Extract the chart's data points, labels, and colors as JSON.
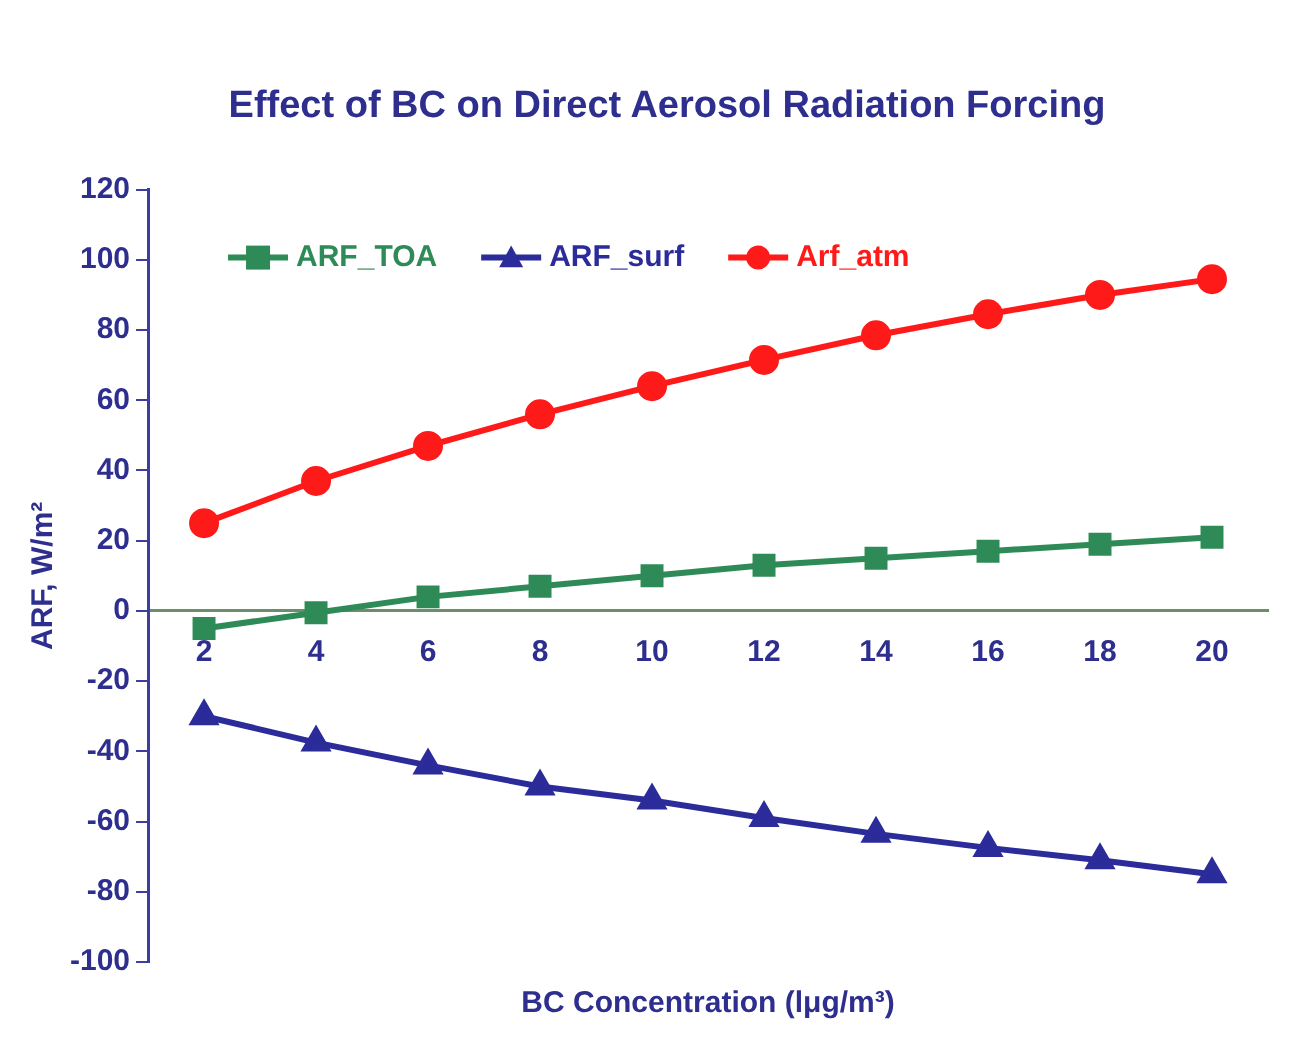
{
  "chart_data": {
    "type": "line",
    "title": "Effect of BC on Direct Aerosol Radiation Forcing",
    "xlabel": "BC Concentration (lμg/m³)",
    "ylabel": "ARF, W/m²",
    "categories": [
      "2",
      "4",
      "6",
      "8",
      "10",
      "12",
      "14",
      "16",
      "18",
      "20"
    ],
    "series": [
      {
        "name": "ARF_TOA",
        "color": "#2e8b57",
        "marker": "square",
        "values": [
          -5,
          -0.5,
          4,
          7,
          10,
          13,
          15,
          17,
          19,
          21
        ]
      },
      {
        "name": "ARF_surf",
        "color": "#2b2b9a",
        "marker": "triangle",
        "values": [
          -30,
          -37.5,
          -44,
          -50,
          -54,
          -59,
          -63.5,
          -67.5,
          -71,
          -75
        ]
      },
      {
        "name": "Arf_atm",
        "color": "#ff1a1a",
        "marker": "circle",
        "values": [
          25,
          37,
          47,
          56,
          64,
          71.5,
          78.5,
          84.5,
          90,
          94.5
        ]
      }
    ],
    "ylim": [
      -100,
      120
    ],
    "yticks": [
      -100,
      -80,
      -60,
      -40,
      -20,
      0,
      20,
      40,
      60,
      80,
      100,
      120
    ],
    "grid": false,
    "legend": "top left",
    "line_style": "solid"
  }
}
